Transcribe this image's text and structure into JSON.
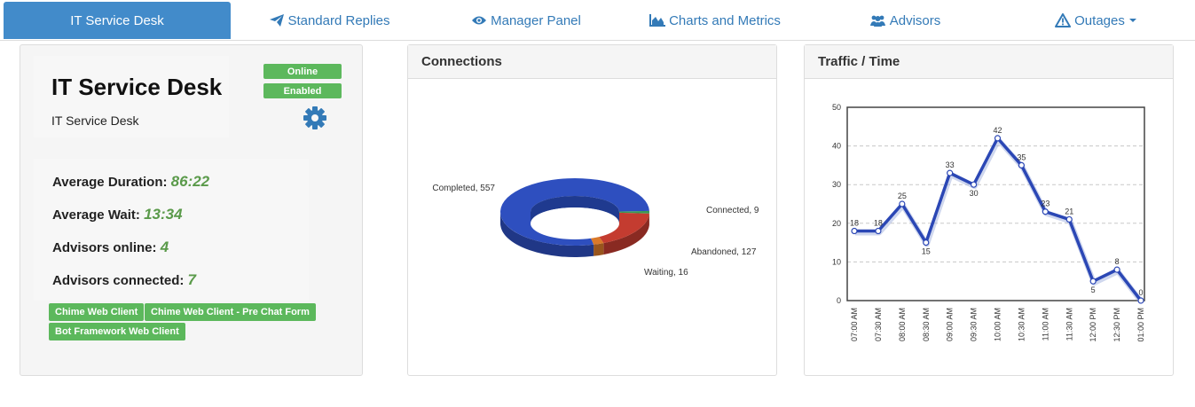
{
  "nav": {
    "tabs": [
      {
        "label": "IT Service Desk",
        "icon": "none"
      },
      {
        "label": "Standard Replies",
        "icon": "paper-plane-icon"
      },
      {
        "label": "Manager Panel",
        "icon": "eye-icon"
      },
      {
        "label": "Charts and Metrics",
        "icon": "area-chart-icon"
      },
      {
        "label": "Advisors",
        "icon": "users-icon"
      },
      {
        "label": "Outages",
        "icon": "warning-icon"
      }
    ],
    "active": "IT Service Desk"
  },
  "info": {
    "title": "IT Service Desk",
    "subtitle": "IT Service Desk",
    "status_online": "Online",
    "status_enabled": "Enabled",
    "stats": [
      {
        "label": "Average Duration:",
        "value": "86:22"
      },
      {
        "label": "Average Wait:",
        "value": "13:34"
      },
      {
        "label": "Advisors online:",
        "value": "4"
      },
      {
        "label": "Advisors connected:",
        "value": "7"
      }
    ],
    "clients": [
      "Chime Web Client",
      "Chime Web Client - Pre Chat Form",
      "Bot Framework Web Client"
    ]
  },
  "connections_panel": {
    "title": "Connections"
  },
  "traffic_panel": {
    "title": "Traffic / Time"
  },
  "colors": {
    "accent": "#428bca",
    "link": "#337ab7",
    "success": "#5cb85c",
    "stat_value": "#5a9a4a"
  },
  "chart_data": [
    {
      "type": "pie",
      "style": "3d-donut",
      "slices": [
        {
          "label": "Completed",
          "value": 557,
          "color": "#2e4fbf"
        },
        {
          "label": "Connected",
          "value": 9,
          "color": "#3a9a54"
        },
        {
          "label": "Abandoned",
          "value": 127,
          "color": "#c43c30"
        },
        {
          "label": "Waiting",
          "value": 16,
          "color": "#d9792a"
        }
      ],
      "slice_labels": [
        "Completed, 557",
        "Connected, 9",
        "Abandoned, 127",
        "Waiting, 16"
      ]
    },
    {
      "type": "line",
      "categories": [
        "07:00 AM",
        "07:30 AM",
        "08:00 AM",
        "08:30 AM",
        "09:00 AM",
        "09:30 AM",
        "10:00 AM",
        "10:30 AM",
        "11:00 AM",
        "11:30 AM",
        "12:00 PM",
        "12:30 PM",
        "01:00 PM"
      ],
      "values": [
        18,
        18,
        25,
        15,
        33,
        30,
        42,
        35,
        23,
        21,
        5,
        8,
        0
      ],
      "ylim": [
        0,
        50
      ],
      "yticks": [
        0,
        10,
        20,
        30,
        40,
        50
      ],
      "grid": true,
      "line_color": "#2b47b5"
    }
  ]
}
